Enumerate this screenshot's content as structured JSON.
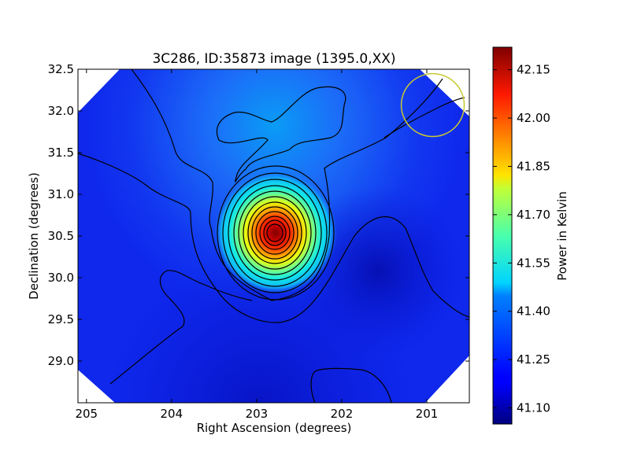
{
  "chart_data": {
    "type": "heatmap",
    "title": "3C286, ID:35873 image (1395.0,XX)",
    "xlabel": "Right Ascension (degrees)",
    "ylabel": "Declination (degrees)",
    "xlim": [
      205.1,
      200.5
    ],
    "ylim": [
      28.5,
      32.5
    ],
    "x_ticks": [
      {
        "value": 205,
        "label": "205"
      },
      {
        "value": 204,
        "label": "204"
      },
      {
        "value": 203,
        "label": "203"
      },
      {
        "value": 202,
        "label": "202"
      },
      {
        "value": 201,
        "label": "201"
      }
    ],
    "y_ticks": [
      {
        "value": 32.5,
        "label": "32.5"
      },
      {
        "value": 32.0,
        "label": "32.0"
      },
      {
        "value": 31.5,
        "label": "31.5"
      },
      {
        "value": 31.0,
        "label": "31.0"
      },
      {
        "value": 30.5,
        "label": "30.5"
      },
      {
        "value": 30.0,
        "label": "30.0"
      },
      {
        "value": 29.5,
        "label": "29.5"
      },
      {
        "value": 29.0,
        "label": "29.0"
      }
    ],
    "peak": {
      "ra": 202.75,
      "dec": 30.53,
      "value": 42.18
    },
    "beam_circle": {
      "ra": 200.93,
      "dec": 32.07,
      "radius_deg": 0.37,
      "color": "#c8c832"
    },
    "colormap": "jet",
    "colorbar": {
      "label": "Power in Kelvin",
      "vmin": 41.05,
      "vmax": 42.22,
      "ticks": [
        {
          "value": 41.1,
          "label": "41.10"
        },
        {
          "value": 41.25,
          "label": "41.25"
        },
        {
          "value": 41.4,
          "label": "41.40"
        },
        {
          "value": 41.55,
          "label": "41.55"
        },
        {
          "value": 41.7,
          "label": "41.70"
        },
        {
          "value": 41.85,
          "label": "41.85"
        },
        {
          "value": 42.0,
          "label": "42.00"
        },
        {
          "value": 42.15,
          "label": "42.15"
        }
      ]
    },
    "grid": false,
    "legend": "none"
  }
}
